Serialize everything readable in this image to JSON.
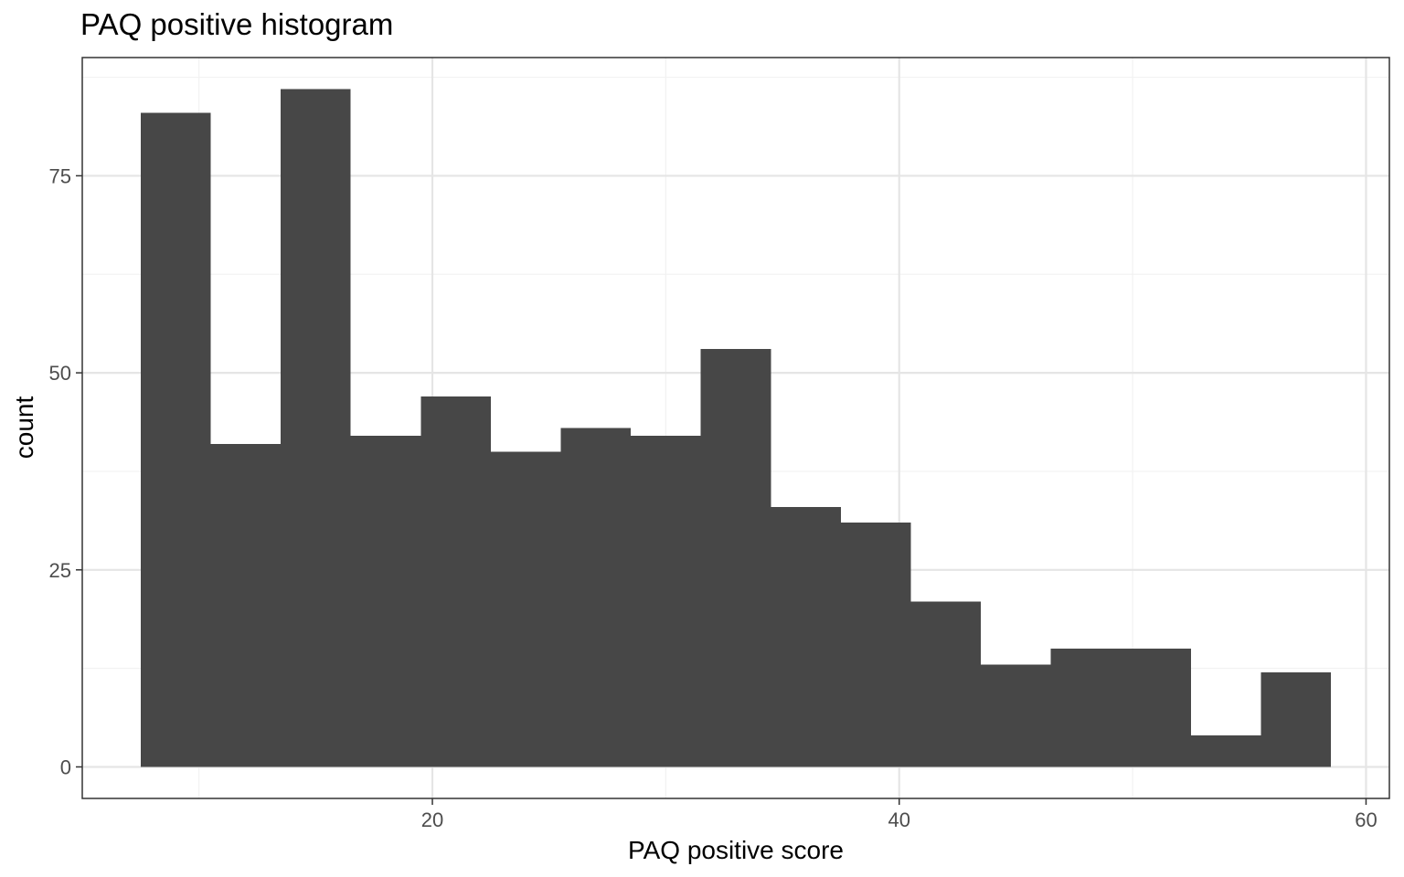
{
  "chart_data": {
    "type": "bar",
    "title": "PAQ positive histogram",
    "xlabel": "PAQ positive score",
    "ylabel": "count",
    "xlim": [
      5,
      61
    ],
    "ylim": [
      -4,
      90
    ],
    "x_ticks": [
      20,
      40,
      60
    ],
    "x_minor_ticks": [
      10,
      30,
      50
    ],
    "y_ticks": [
      0,
      25,
      50,
      75
    ],
    "y_minor_ticks": [
      12.5,
      37.5,
      62.5,
      87.5
    ],
    "bin_width": 3,
    "bins": [
      {
        "start": 7.5,
        "end": 10.5,
        "count": 83
      },
      {
        "start": 10.5,
        "end": 13.5,
        "count": 41
      },
      {
        "start": 13.5,
        "end": 16.5,
        "count": 86
      },
      {
        "start": 16.5,
        "end": 19.5,
        "count": 42
      },
      {
        "start": 19.5,
        "end": 22.5,
        "count": 47
      },
      {
        "start": 22.5,
        "end": 25.5,
        "count": 40
      },
      {
        "start": 25.5,
        "end": 28.5,
        "count": 43
      },
      {
        "start": 28.5,
        "end": 31.5,
        "count": 42
      },
      {
        "start": 31.5,
        "end": 34.5,
        "count": 53
      },
      {
        "start": 34.5,
        "end": 37.5,
        "count": 33
      },
      {
        "start": 37.5,
        "end": 40.5,
        "count": 31
      },
      {
        "start": 40.5,
        "end": 43.5,
        "count": 21
      },
      {
        "start": 43.5,
        "end": 46.5,
        "count": 13
      },
      {
        "start": 46.5,
        "end": 49.5,
        "count": 15
      },
      {
        "start": 49.5,
        "end": 52.5,
        "count": 15
      },
      {
        "start": 52.5,
        "end": 55.5,
        "count": 4
      },
      {
        "start": 55.5,
        "end": 58.5,
        "count": 12
      }
    ],
    "grid": true,
    "legend": "none",
    "colors": {
      "bar_fill": "#474747",
      "grid_major": "#e5e5e5",
      "grid_minor": "#f2f2f2",
      "panel_border": "#333333",
      "tick_label": "#4d4d4d",
      "text": "#000000"
    }
  }
}
